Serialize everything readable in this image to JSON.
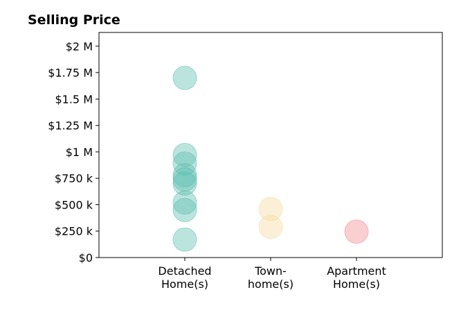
{
  "chart_data": {
    "type": "scatter",
    "title": "Selling Price",
    "xlabel": "",
    "ylabel": "",
    "categories": [
      [
        "Detached",
        "Home(s)"
      ],
      [
        "Town-",
        "home(s)"
      ],
      [
        "Apartment",
        "Home(s)"
      ]
    ],
    "y_ticks": [
      0,
      250000,
      500000,
      750000,
      1000000,
      1250000,
      1500000,
      1750000,
      2000000
    ],
    "y_tick_labels": [
      "$0",
      "$250 k",
      "$500 k",
      "$750 k",
      "$1 M",
      "$1.25 M",
      "$1.5 M",
      "$1.75 M",
      "$2 M"
    ],
    "ylim": [
      0,
      2130000
    ],
    "xlim": [
      -1,
      3
    ],
    "grid": false,
    "series": [
      {
        "color": "#5fbfb0",
        "category_index": 0,
        "values": [
          1700000,
          970000,
          890000,
          780000,
          740000,
          700000,
          520000,
          450000,
          170000
        ]
      },
      {
        "color": "#f5dca0",
        "category_index": 1,
        "values": [
          460000,
          290000
        ]
      },
      {
        "color": "#f08c93",
        "category_index": 2,
        "values": [
          245000
        ]
      }
    ]
  }
}
